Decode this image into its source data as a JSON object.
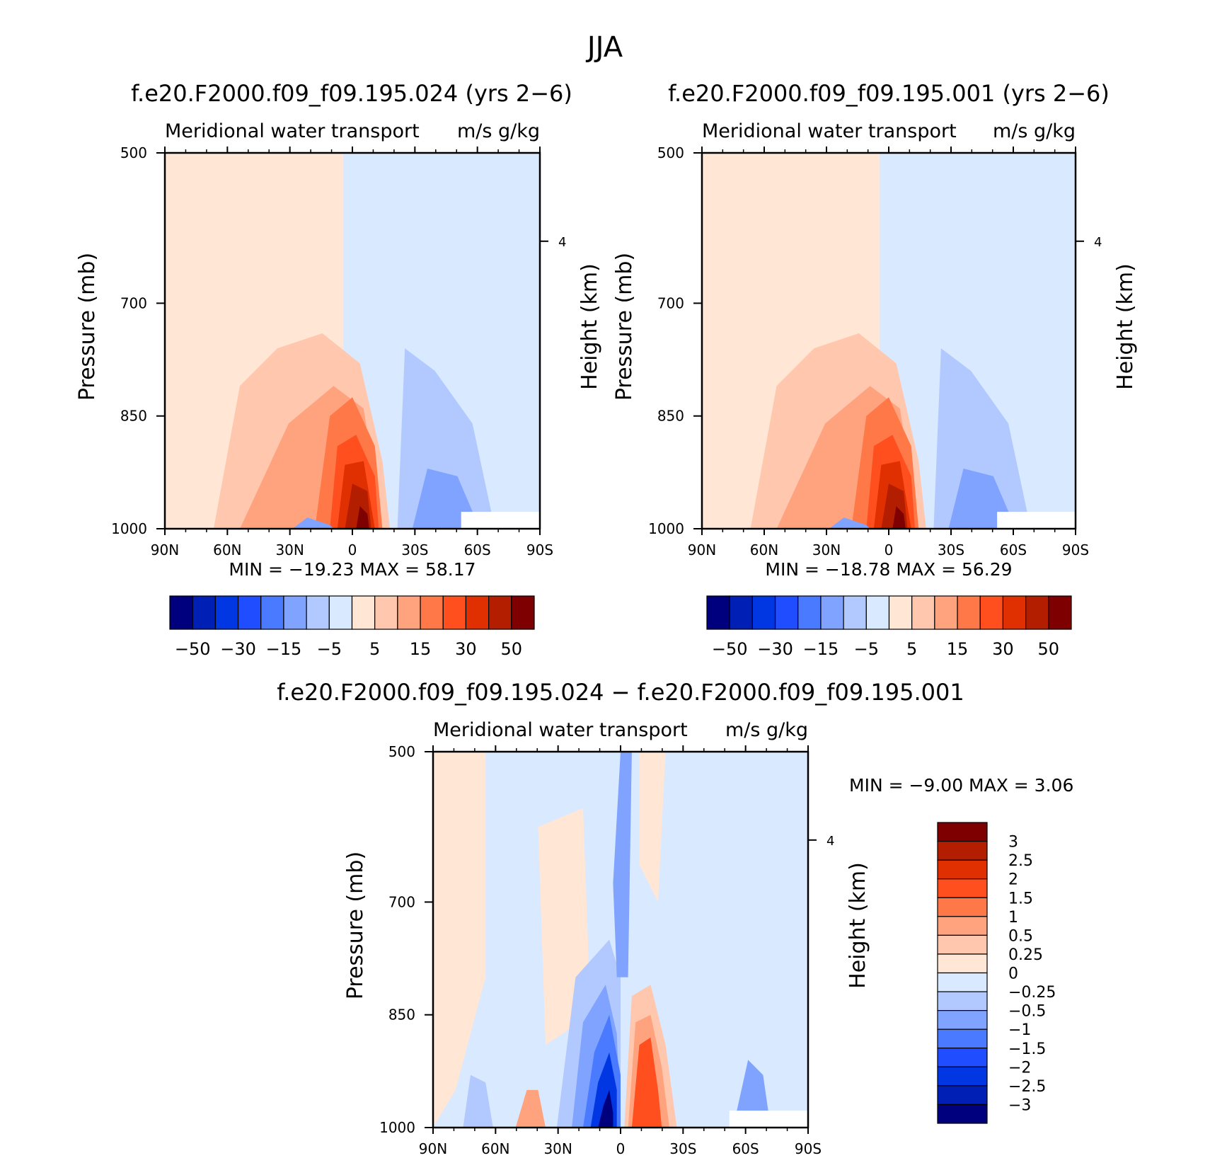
{
  "figure": {
    "title": "JJA"
  },
  "colors": {
    "main_scale": [
      "#00007f",
      "#0020b5",
      "#0037e3",
      "#1f4dff",
      "#4a7aff",
      "#7fa3ff",
      "#b1c9ff",
      "#d9e9ff",
      "#ffe6d5",
      "#ffc7ad",
      "#ffa37f",
      "#ff7847",
      "#ff4f1f",
      "#e02f00",
      "#b31e00",
      "#7f0000"
    ],
    "diff_scale": [
      "#00007f",
      "#0020b5",
      "#0037e3",
      "#1f4dff",
      "#4a7aff",
      "#7fa3ff",
      "#b1c9ff",
      "#d9e9ff",
      "#ffe6d5",
      "#ffc7ad",
      "#ffa37f",
      "#ff7847",
      "#ff4f1f",
      "#e02f00",
      "#b31e00",
      "#7f0000"
    ]
  },
  "chart_data": [
    {
      "type": "heatmap",
      "title": "f.e20.F2000.f09_f09.195.024 (yrs 2−6)",
      "subtitle_left": "Meridional water transport",
      "subtitle_right": "m/s g/kg",
      "ylabel": "Pressure (mb)",
      "ylabel_right": "Height (km)",
      "x_ticks": [
        "90N",
        "60N",
        "30N",
        "0",
        "30S",
        "60S",
        "90S"
      ],
      "y_ticks": [
        "500",
        "700",
        "850",
        "1000"
      ],
      "right_ticks": [
        "4"
      ],
      "stats_text": "MIN =  −19.23   MAX =   58.17",
      "min": -19.23,
      "max": 58.17,
      "colorbar_labels": [
        "−50",
        "−30",
        "−15",
        "−5",
        "5",
        "15",
        "30",
        "50"
      ]
    },
    {
      "type": "heatmap",
      "title": "f.e20.F2000.f09_f09.195.001 (yrs 2−6)",
      "subtitle_left": "Meridional water transport",
      "subtitle_right": "m/s g/kg",
      "ylabel": "Pressure (mb)",
      "ylabel_right": "Height (km)",
      "x_ticks": [
        "90N",
        "60N",
        "30N",
        "0",
        "30S",
        "60S",
        "90S"
      ],
      "y_ticks": [
        "500",
        "700",
        "850",
        "1000"
      ],
      "right_ticks": [
        "4"
      ],
      "stats_text": "MIN =  −18.78   MAX =   56.29",
      "min": -18.78,
      "max": 56.29,
      "colorbar_labels": [
        "−50",
        "−30",
        "−15",
        "−5",
        "5",
        "15",
        "30",
        "50"
      ]
    },
    {
      "type": "heatmap",
      "title": "f.e20.F2000.f09_f09.195.024 − f.e20.F2000.f09_f09.195.001",
      "subtitle_left": "Meridional water transport",
      "subtitle_right": "m/s g/kg",
      "ylabel": "Pressure (mb)",
      "ylabel_right": "Height (km)",
      "x_ticks": [
        "90N",
        "60N",
        "30N",
        "0",
        "30S",
        "60S",
        "90S"
      ],
      "y_ticks": [
        "500",
        "700",
        "850",
        "1000"
      ],
      "right_ticks": [
        "4"
      ],
      "stats_text": "MIN =   −9.00   MAX =    3.06",
      "min": -9.0,
      "max": 3.06,
      "colorbar_labels": [
        "3",
        "2.5",
        "2",
        "1.5",
        "1",
        "0.5",
        "0.25",
        "0",
        "−0.25",
        "−0.5",
        "−1",
        "−1.5",
        "−2",
        "−2.5",
        "−3"
      ]
    }
  ]
}
